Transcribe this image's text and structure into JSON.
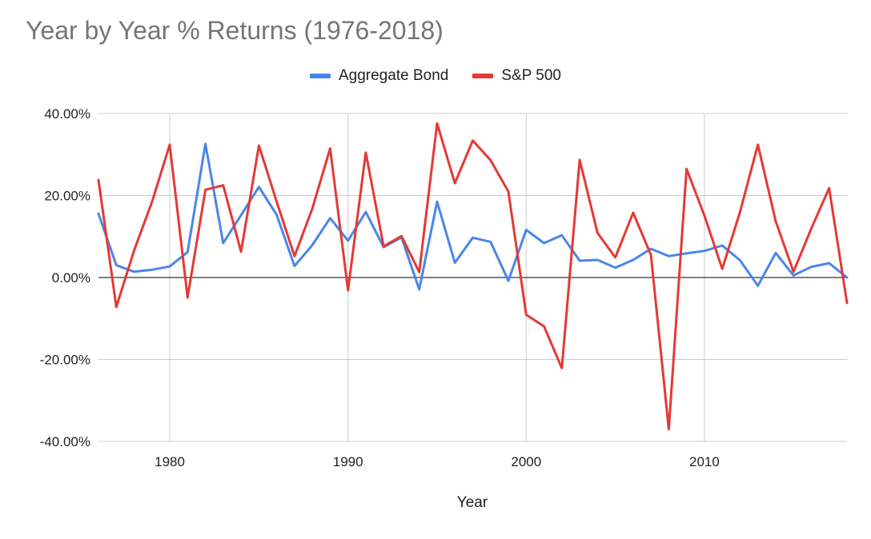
{
  "chart_data": {
    "type": "line",
    "title": "Year by Year % Returns (1976-2018)",
    "xlabel": "Year",
    "ylabel": "",
    "xlim": [
      1976,
      2018
    ],
    "ylim": [
      -40,
      40
    ],
    "x_ticks": [
      1980,
      1990,
      2000,
      2010
    ],
    "y_ticks": [
      -40,
      -20,
      0,
      20,
      40
    ],
    "y_tick_labels": [
      "-40.00%",
      "-20.00%",
      "0.00%",
      "20.00%",
      "40.00%"
    ],
    "grid": true,
    "legend_position": "top",
    "x": [
      1976,
      1977,
      1978,
      1979,
      1980,
      1981,
      1982,
      1983,
      1984,
      1985,
      1986,
      1987,
      1988,
      1989,
      1990,
      1991,
      1992,
      1993,
      1994,
      1995,
      1996,
      1997,
      1998,
      1999,
      2000,
      2001,
      2002,
      2003,
      2004,
      2005,
      2006,
      2007,
      2008,
      2009,
      2010,
      2011,
      2012,
      2013,
      2014,
      2015,
      2016,
      2017,
      2018
    ],
    "series": [
      {
        "name": "Aggregate Bond",
        "color": "#4a86e8",
        "values": [
          15.6,
          3.0,
          1.4,
          1.9,
          2.7,
          6.2,
          32.6,
          8.4,
          15.2,
          22.1,
          15.3,
          2.8,
          7.9,
          14.5,
          9.0,
          16.0,
          7.4,
          9.8,
          -2.9,
          18.5,
          3.6,
          9.7,
          8.7,
          -0.8,
          11.6,
          8.4,
          10.3,
          4.1,
          4.3,
          2.4,
          4.3,
          7.0,
          5.2,
          5.9,
          6.5,
          7.8,
          4.2,
          -2.0,
          6.0,
          0.5,
          2.6,
          3.5,
          0.0
        ]
      },
      {
        "name": "S&P 500",
        "color": "#e53935",
        "values": [
          23.8,
          -7.2,
          6.6,
          18.4,
          32.4,
          -4.9,
          21.4,
          22.5,
          6.3,
          32.2,
          18.5,
          5.2,
          16.8,
          31.5,
          -3.1,
          30.5,
          7.6,
          10.1,
          1.3,
          37.6,
          23.0,
          33.4,
          28.6,
          21.0,
          -9.1,
          -11.9,
          -22.1,
          28.7,
          10.9,
          4.9,
          15.8,
          5.5,
          -37.0,
          26.5,
          15.1,
          2.1,
          16.0,
          32.4,
          13.7,
          1.4,
          12.0,
          21.8,
          -6.2
        ]
      }
    ]
  }
}
